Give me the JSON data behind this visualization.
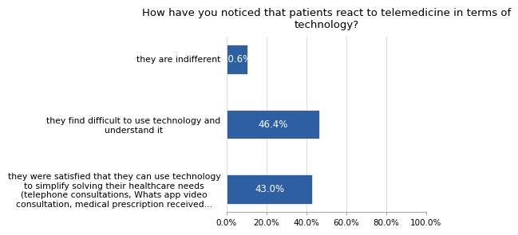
{
  "title": "How have you noticed that patients react to telemedicine in terms of\ntechnology?",
  "categories": [
    "they were satisfied that they can use technology\nto simplify solving their healthcare needs\n(telephone consultations, Whats app video\nconsultation, medical prescription received...",
    "they find difficult to use technology and\nunderstand it",
    "they are indifferent"
  ],
  "values": [
    43.0,
    46.4,
    10.6
  ],
  "bar_color": "#2E5FA3",
  "bar_edge_color": "#1a3d6e",
  "value_labels": [
    "43.0%",
    "46.4%",
    "10.6%"
  ],
  "xlim": [
    0,
    100
  ],
  "xticks": [
    0,
    20,
    40,
    60,
    80,
    100
  ],
  "xtick_labels": [
    "0.0%",
    "20.0%",
    "40.0%",
    "60.0%",
    "80.0%",
    "100.0%"
  ],
  "title_fontsize": 9.5,
  "label_fontsize": 7.8,
  "value_fontsize": 8.5,
  "xtick_fontsize": 7.5,
  "background_color": "#ffffff",
  "bar_height": 0.45
}
